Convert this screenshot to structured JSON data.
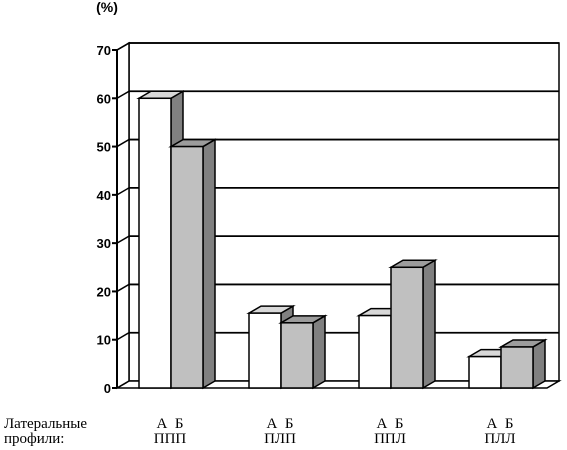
{
  "chart_data": {
    "type": "bar",
    "unit_label": "(%)",
    "row_label": [
      "Латеральные",
      "профили:"
    ],
    "categories": [
      "ППП",
      "ПЛП",
      "ППЛ",
      "ПЛЛ"
    ],
    "series_labels": [
      "А",
      "Б"
    ],
    "series": [
      {
        "label": "А",
        "values": [
          60,
          15.5,
          15,
          6.5
        ],
        "color": "#ffffff"
      },
      {
        "label": "Б",
        "values": [
          50,
          13.5,
          25,
          8.5
        ],
        "color": "#c0c0c0"
      }
    ],
    "ylim": [
      0,
      70
    ],
    "yticks": [
      0,
      10,
      20,
      30,
      40,
      50,
      60,
      70
    ],
    "grid": true,
    "style": "3d"
  }
}
